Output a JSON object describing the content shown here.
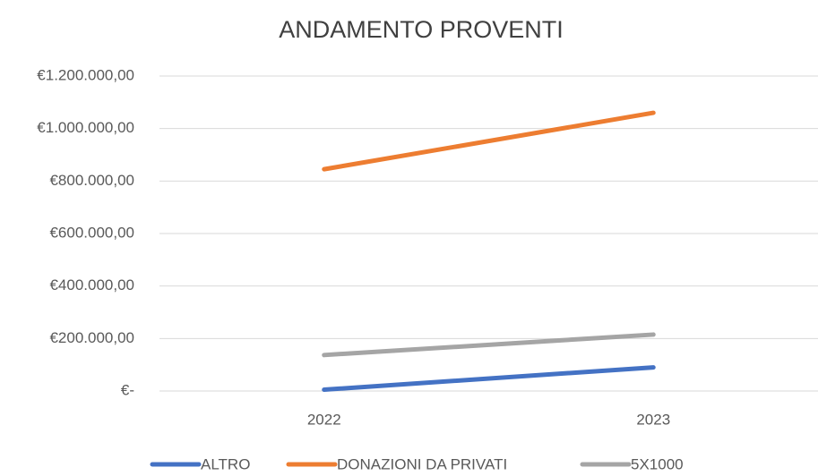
{
  "chart_data": {
    "type": "line",
    "title": "ANDAMENTO PROVENTI",
    "categories": [
      "2022",
      "2023"
    ],
    "series": [
      {
        "name": "ALTRO",
        "color": "#4472c4",
        "values": [
          5000,
          90000
        ]
      },
      {
        "name": "DONAZIONI DA PRIVATI",
        "color": "#ed7d31",
        "values": [
          845000,
          1060000
        ]
      },
      {
        "name": "5X1000",
        "color": "#a5a5a5",
        "values": [
          137000,
          215000
        ]
      }
    ],
    "ylim": [
      0,
      1200000
    ],
    "yticks": [
      {
        "value": 0,
        "label": "€-"
      },
      {
        "value": 200000,
        "label": "€200.000,00"
      },
      {
        "value": 400000,
        "label": "€400.000,00"
      },
      {
        "value": 600000,
        "label": "€600.000,00"
      },
      {
        "value": 800000,
        "label": "€800.000,00"
      },
      {
        "value": 1000000,
        "label": "€1.000.000,00"
      },
      {
        "value": 1200000,
        "label": "€1.200.000,00"
      }
    ],
    "grid": true,
    "legend": "bottom"
  }
}
